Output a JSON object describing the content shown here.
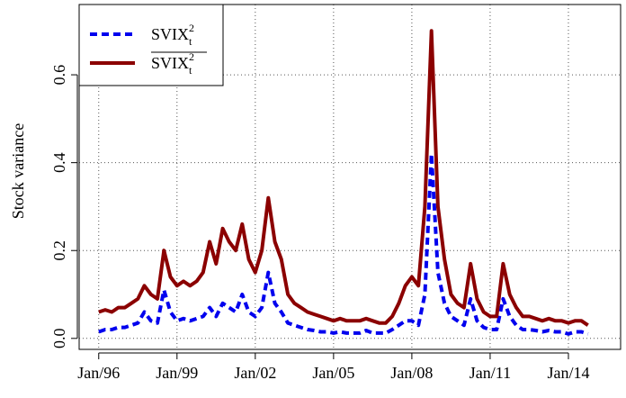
{
  "chart_data": {
    "type": "line",
    "y_label": "Stock variance",
    "x": [
      "1996-01",
      "1996-04",
      "1996-07",
      "1996-10",
      "1997-01",
      "1997-04",
      "1997-07",
      "1997-10",
      "1998-01",
      "1998-04",
      "1998-07",
      "1998-10",
      "1999-01",
      "1999-04",
      "1999-07",
      "1999-10",
      "2000-01",
      "2000-04",
      "2000-07",
      "2000-10",
      "2001-01",
      "2001-04",
      "2001-07",
      "2001-10",
      "2002-01",
      "2002-04",
      "2002-07",
      "2002-10",
      "2003-01",
      "2003-04",
      "2003-07",
      "2003-10",
      "2004-01",
      "2004-04",
      "2004-07",
      "2004-10",
      "2005-01",
      "2005-04",
      "2005-07",
      "2005-10",
      "2006-01",
      "2006-04",
      "2006-07",
      "2006-10",
      "2007-01",
      "2007-04",
      "2007-07",
      "2007-10",
      "2008-01",
      "2008-04",
      "2008-07",
      "2008-10",
      "2009-01",
      "2009-04",
      "2009-07",
      "2009-10",
      "2010-01",
      "2010-04",
      "2010-07",
      "2010-10",
      "2011-01",
      "2011-04",
      "2011-07",
      "2011-10",
      "2012-01",
      "2012-04",
      "2012-07",
      "2012-10",
      "2013-01",
      "2013-04",
      "2013-07",
      "2013-10",
      "2014-01",
      "2014-04",
      "2014-07",
      "2014-10"
    ],
    "series": [
      {
        "name": "SVIX",
        "superscript": "2",
        "subscript": "t",
        "overline": false,
        "color": "#0000ee",
        "dashed": true,
        "values": [
          0.015,
          0.02,
          0.02,
          0.025,
          0.025,
          0.03,
          0.035,
          0.06,
          0.04,
          0.035,
          0.11,
          0.06,
          0.04,
          0.045,
          0.04,
          0.045,
          0.05,
          0.07,
          0.05,
          0.08,
          0.07,
          0.06,
          0.1,
          0.06,
          0.05,
          0.07,
          0.15,
          0.08,
          0.06,
          0.035,
          0.03,
          0.025,
          0.02,
          0.018,
          0.015,
          0.015,
          0.012,
          0.015,
          0.012,
          0.012,
          0.012,
          0.018,
          0.012,
          0.012,
          0.012,
          0.02,
          0.03,
          0.04,
          0.04,
          0.03,
          0.1,
          0.42,
          0.15,
          0.08,
          0.05,
          0.04,
          0.03,
          0.09,
          0.04,
          0.025,
          0.02,
          0.02,
          0.09,
          0.05,
          0.03,
          0.02,
          0.02,
          0.018,
          0.015,
          0.018,
          0.015,
          0.015,
          0.01,
          0.015,
          0.015,
          0.01
        ]
      },
      {
        "name": "SVIX",
        "superscript": "2",
        "subscript": "t",
        "overline": true,
        "color": "#8b0000",
        "dashed": false,
        "values": [
          0.06,
          0.065,
          0.06,
          0.07,
          0.07,
          0.08,
          0.09,
          0.12,
          0.1,
          0.09,
          0.2,
          0.14,
          0.12,
          0.13,
          0.12,
          0.13,
          0.15,
          0.22,
          0.17,
          0.25,
          0.22,
          0.2,
          0.26,
          0.18,
          0.15,
          0.2,
          0.32,
          0.22,
          0.18,
          0.1,
          0.08,
          0.07,
          0.06,
          0.055,
          0.05,
          0.045,
          0.04,
          0.045,
          0.04,
          0.04,
          0.04,
          0.045,
          0.04,
          0.035,
          0.035,
          0.05,
          0.08,
          0.12,
          0.14,
          0.12,
          0.3,
          0.7,
          0.3,
          0.18,
          0.1,
          0.08,
          0.07,
          0.17,
          0.09,
          0.06,
          0.05,
          0.05,
          0.17,
          0.1,
          0.07,
          0.05,
          0.05,
          0.045,
          0.04,
          0.045,
          0.04,
          0.04,
          0.035,
          0.04,
          0.04,
          0.03
        ]
      }
    ],
    "xlim": [
      "1995-04",
      "2016-01"
    ],
    "xticks": [
      {
        "value": "1996-01",
        "label": "Jan/96"
      },
      {
        "value": "1999-01",
        "label": "Jan/99"
      },
      {
        "value": "2002-01",
        "label": "Jan/02"
      },
      {
        "value": "2005-01",
        "label": "Jan/05"
      },
      {
        "value": "2008-01",
        "label": "Jan/08"
      },
      {
        "value": "2011-01",
        "label": "Jan/11"
      },
      {
        "value": "2014-01",
        "label": "Jan/14"
      }
    ],
    "ylim": [
      -0.025,
      0.76
    ],
    "yticks": [
      {
        "value": 0,
        "label": "0.0"
      },
      {
        "value": 0.2,
        "label": "0.2"
      },
      {
        "value": 0.4,
        "label": "0.4"
      },
      {
        "value": 0.6,
        "label": "0.6"
      }
    ],
    "grid": true,
    "legend": "top-left"
  }
}
